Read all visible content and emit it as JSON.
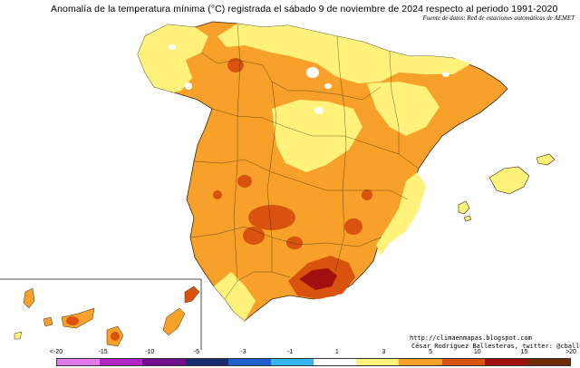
{
  "title": "Anomalía de la temperatura mínima (°C) registrada el sábado 9 de noviembre de 2024 respecto al periodo 1991-2020",
  "source": "Fuente de datos: Red de estaciones automáticas de AEMET",
  "credits": {
    "url": "http://climaenmapas.blogspot.com",
    "author": "César Rodríguez Ballesteros, twitter: @cballesteros"
  },
  "legend": {
    "ticks": [
      "<-20",
      "-15",
      "-10",
      "-5",
      "-3",
      "-1",
      "1",
      "3",
      "5",
      "10",
      "15",
      ">20"
    ],
    "colors": [
      "#e07ae9",
      "#b325c9",
      "#6f0f8d",
      "#1a2a6e",
      "#1f5fd0",
      "#35b4ee",
      "#ffffff",
      "#fff27a",
      "#f7a02a",
      "#d9520e",
      "#a01010",
      "#6e2c00"
    ]
  },
  "palette": {
    "pale_yellow": "#fff27a",
    "orange": "#f7a02a",
    "dark_orange": "#d9520e",
    "red": "#a01010",
    "white": "#ffffff",
    "boundary": "#3a2a10"
  }
}
